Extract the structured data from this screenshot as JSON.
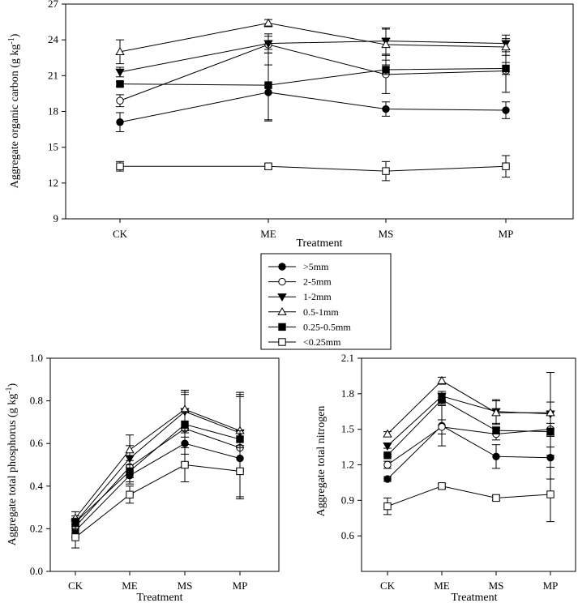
{
  "series_style": [
    {
      "name": ">5mm",
      "marker": "circle",
      "fill": "#000000"
    },
    {
      "name": "2-5mm",
      "marker": "circle",
      "fill": "#ffffff"
    },
    {
      "name": "1-2mm",
      "marker": "triangle-down",
      "fill": "#000000"
    },
    {
      "name": "0.5-1mm",
      "marker": "triangle-up",
      "fill": "#ffffff"
    },
    {
      "name": "0.25-0.5mm",
      "marker": "square",
      "fill": "#000000"
    },
    {
      "name": "<0.25mm",
      "marker": "square",
      "fill": "#ffffff"
    }
  ],
  "legend": {
    "entries": [
      ">5mm",
      "2-5mm",
      "1-2mm",
      "0.5-1mm",
      "0.25-0.5mm",
      "<0.25mm"
    ]
  },
  "chart_data": [
    {
      "id": "carbon",
      "type": "line",
      "title": "",
      "xlabel": "Treatment",
      "ylabel": "Aggregate organic carbon (g kg",
      "ylabel_sup": "-1",
      "ylabel_close": ")",
      "categories": [
        "CK",
        "ME",
        "MS",
        "MP"
      ],
      "ylim": [
        9,
        27
      ],
      "yticks": [
        9,
        12,
        15,
        18,
        21,
        24,
        27
      ],
      "ytick_labels": [
        "9",
        "12",
        "15",
        "18",
        "21",
        "24",
        "27"
      ],
      "series": [
        {
          "name": ">5mm",
          "values": [
            17.1,
            19.6,
            18.2,
            18.1
          ],
          "errors": [
            0.8,
            2.3,
            0.6,
            0.7
          ]
        },
        {
          "name": "2-5mm",
          "values": [
            18.9,
            23.6,
            21.1,
            21.4
          ],
          "errors": [
            0.5,
            0.7,
            1.6,
            1.8
          ]
        },
        {
          "name": "1-2mm",
          "values": [
            21.3,
            23.7,
            23.9,
            23.7
          ],
          "errors": [
            0.4,
            0.8,
            1.1,
            0.7
          ]
        },
        {
          "name": "0.5-1mm",
          "values": [
            23.0,
            25.4,
            23.6,
            23.4
          ],
          "errors": [
            1.0,
            0.3,
            1.3,
            0.7
          ]
        },
        {
          "name": "0.25-0.5mm",
          "values": [
            20.3,
            20.2,
            21.5,
            21.6
          ],
          "errors": [
            0.2,
            3.0,
            0.4,
            0.5
          ]
        },
        {
          "name": "<0.25mm",
          "values": [
            13.4,
            13.4,
            13.0,
            13.4
          ],
          "errors": [
            0.4,
            0.2,
            0.8,
            0.9
          ]
        }
      ]
    },
    {
      "id": "phosphorus",
      "type": "line",
      "title": "",
      "xlabel": "Treatment",
      "ylabel": "Aggregate total phosphorus (g kg",
      "ylabel_sup": "-1",
      "ylabel_close": ")",
      "categories": [
        "CK",
        "ME",
        "MS",
        "MP"
      ],
      "ylim": [
        0.0,
        1.0
      ],
      "yticks": [
        0.0,
        0.2,
        0.4,
        0.6,
        0.8,
        1.0
      ],
      "ytick_labels": [
        "0.0",
        "0.2",
        "0.4",
        "0.6",
        "0.8",
        "1.0"
      ],
      "series": [
        {
          "name": ">5mm",
          "values": [
            0.19,
            0.45,
            0.6,
            0.53
          ],
          "errors": [
            0.03,
            0.04,
            0.05,
            0.05
          ]
        },
        {
          "name": "2-5mm",
          "values": [
            0.21,
            0.49,
            0.67,
            0.58
          ],
          "errors": [
            0.03,
            0.05,
            0.16,
            0.24
          ]
        },
        {
          "name": "1-2mm",
          "values": [
            0.23,
            0.53,
            0.75,
            0.65
          ],
          "errors": [
            0.03,
            0.06,
            0.09,
            0.18
          ]
        },
        {
          "name": "0.5-1mm",
          "values": [
            0.25,
            0.57,
            0.76,
            0.66
          ],
          "errors": [
            0.03,
            0.07,
            0.09,
            0.18
          ]
        },
        {
          "name": "0.25-0.5mm",
          "values": [
            0.23,
            0.47,
            0.69,
            0.62
          ],
          "errors": [
            0.02,
            0.05,
            0.06,
            0.04
          ]
        },
        {
          "name": "<0.25mm",
          "values": [
            0.16,
            0.36,
            0.5,
            0.47
          ],
          "errors": [
            0.05,
            0.04,
            0.08,
            0.12
          ]
        }
      ]
    },
    {
      "id": "nitrogen",
      "type": "line",
      "title": "",
      "xlabel": "Treatment",
      "ylabel": "Aggregate total nitrogen",
      "ylabel_sup": "",
      "ylabel_close": "",
      "categories": [
        "CK",
        "ME",
        "MS",
        "MP"
      ],
      "ylim": [
        0.3,
        2.1
      ],
      "yticks": [
        0.6,
        0.9,
        1.2,
        1.5,
        1.8,
        2.1
      ],
      "ytick_labels": [
        "0.6",
        "0.9",
        "1.2",
        "1.5",
        "1.8",
        "2.1"
      ],
      "series": [
        {
          "name": ">5mm",
          "values": [
            1.08,
            1.53,
            1.27,
            1.26
          ],
          "errors": [
            0.02,
            0.17,
            0.1,
            0.18
          ]
        },
        {
          "name": "2-5mm",
          "values": [
            1.2,
            1.52,
            1.46,
            1.5
          ],
          "errors": [
            0.03,
            0.06,
            0.05,
            0.15
          ]
        },
        {
          "name": "1-2mm",
          "values": [
            1.36,
            1.78,
            1.65,
            1.63
          ],
          "errors": [
            0.02,
            0.04,
            0.1,
            0.35
          ]
        },
        {
          "name": "0.5-1mm",
          "values": [
            1.46,
            1.91,
            1.64,
            1.64
          ],
          "errors": [
            0.02,
            0.03,
            0.1,
            0.09
          ]
        },
        {
          "name": "0.25-0.5mm",
          "values": [
            1.28,
            1.75,
            1.49,
            1.48
          ],
          "errors": [
            0.01,
            0.04,
            0.03,
            0.03
          ]
        },
        {
          "name": "<0.25mm",
          "values": [
            0.85,
            1.02,
            0.92,
            0.95
          ],
          "errors": [
            0.07,
            0.02,
            0.02,
            0.23
          ]
        }
      ]
    }
  ]
}
